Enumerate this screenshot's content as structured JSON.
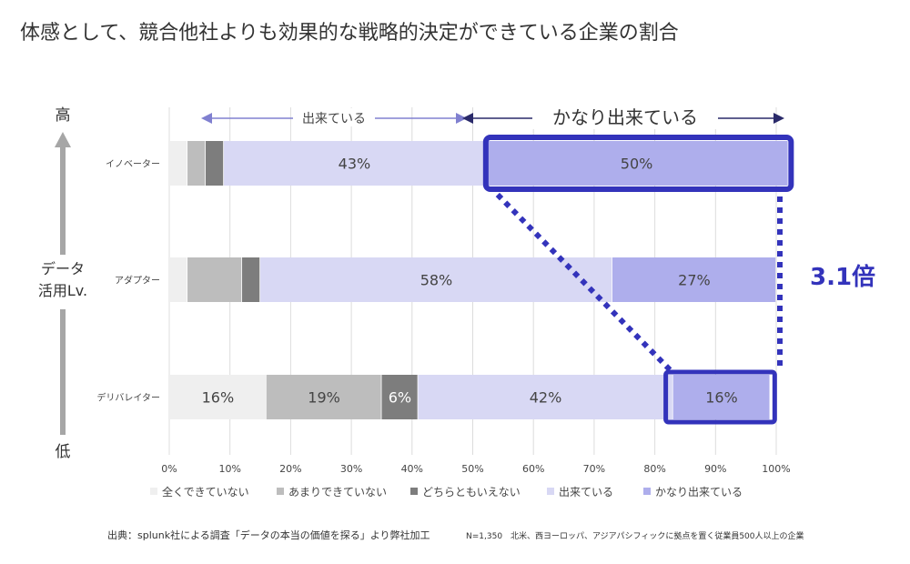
{
  "title": "体感として、競合他社よりも効果的な戦略的決定ができている企業の割合",
  "footer": {
    "source": "出典：splunk社による調査「データの本当の価値を探る」より弊社加工",
    "note": "N=1,350　北米、西ヨーロッパ、アジアパシフィックに拠点を置く従業員500人以上の企業"
  },
  "annotations": {
    "dekiteiru_span_label": "出来ている",
    "kanari_span_label": "かなり出来ている",
    "ratio_label": "3.1倍",
    "y_axis_top": "高",
    "y_axis_bottom": "低",
    "y_axis_title": [
      "データ",
      "活用Lv."
    ]
  },
  "colors": {
    "全くできていない": "#efefef",
    "あまりできていない": "#bdbdbd",
    "どちらともいえない": "#7d7d7d",
    "出来ている": "#d8d8f4",
    "かなり出来ている": "#aeaeec",
    "highlight": "#3333bb",
    "axis_arrow": "#a6a6a6"
  },
  "chart_data": {
    "type": "bar",
    "orientation": "horizontal",
    "stacked": true,
    "categories": [
      "イノベーター",
      "アダプター",
      "デリバレイター"
    ],
    "series": [
      {
        "name": "全くできていない",
        "values": [
          3,
          3,
          16
        ],
        "labels": [
          "",
          "",
          "16%"
        ]
      },
      {
        "name": "あまりできていない",
        "values": [
          3,
          9,
          19
        ],
        "labels": [
          "",
          "",
          "19%"
        ]
      },
      {
        "name": "どちらともいえない",
        "values": [
          3,
          3,
          6
        ],
        "labels": [
          "",
          "",
          "6%"
        ]
      },
      {
        "name": "出来ている",
        "values": [
          43,
          58,
          42
        ],
        "labels": [
          "43%",
          "58%",
          "42%"
        ]
      },
      {
        "name": "かなり出来ている",
        "values": [
          50,
          27,
          16
        ],
        "labels": [
          "50%",
          "27%",
          "16%"
        ]
      }
    ],
    "x_ticks": [
      "0%",
      "10%",
      "20%",
      "30%",
      "40%",
      "50%",
      "60%",
      "70%",
      "80%",
      "90%",
      "100%"
    ],
    "xlim": [
      0,
      100
    ],
    "grid": true,
    "legend_position": "bottom"
  }
}
